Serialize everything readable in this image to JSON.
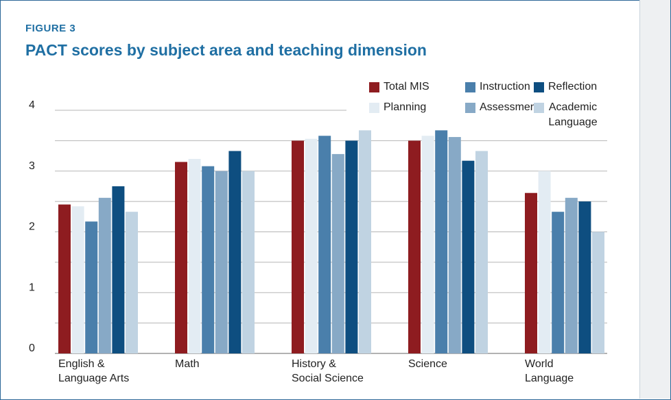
{
  "label": "FIGURE 3",
  "chart_data": {
    "type": "bar",
    "title": "PACT scores by subject area and teaching dimension",
    "categories": [
      [
        "English &",
        "Language Arts"
      ],
      [
        "Math"
      ],
      [
        "History &",
        "Social Science"
      ],
      [
        "Science"
      ],
      [
        "World",
        "Language"
      ]
    ],
    "series": [
      {
        "name": "Total MIS",
        "color": "#8e1c20",
        "values": [
          2.45,
          3.15,
          3.5,
          3.5,
          2.64
        ]
      },
      {
        "name": "Planning",
        "color": "#e3ecf3",
        "values": [
          2.42,
          3.2,
          3.53,
          3.58,
          3.0
        ]
      },
      {
        "name": "Instruction",
        "color": "#4a7fab",
        "values": [
          2.17,
          3.08,
          3.58,
          3.67,
          2.33
        ]
      },
      {
        "name": "Assessment",
        "color": "#87a9c6",
        "values": [
          2.56,
          3.0,
          3.28,
          3.56,
          2.56
        ]
      },
      {
        "name": "Reflection",
        "color": "#0e4e80",
        "values": [
          2.75,
          3.33,
          3.5,
          3.17,
          2.5
        ]
      },
      {
        "name": "Academic Language",
        "color": "#c0d3e2",
        "values": [
          2.33,
          3.0,
          3.67,
          3.33,
          2.0
        ]
      }
    ],
    "ylim": [
      0,
      4
    ],
    "yticks": [
      0,
      1,
      2,
      3,
      4
    ],
    "minor_yticks": [
      0.5,
      1.5,
      2.5,
      3.5
    ],
    "grid": true,
    "legend": "top-right"
  }
}
